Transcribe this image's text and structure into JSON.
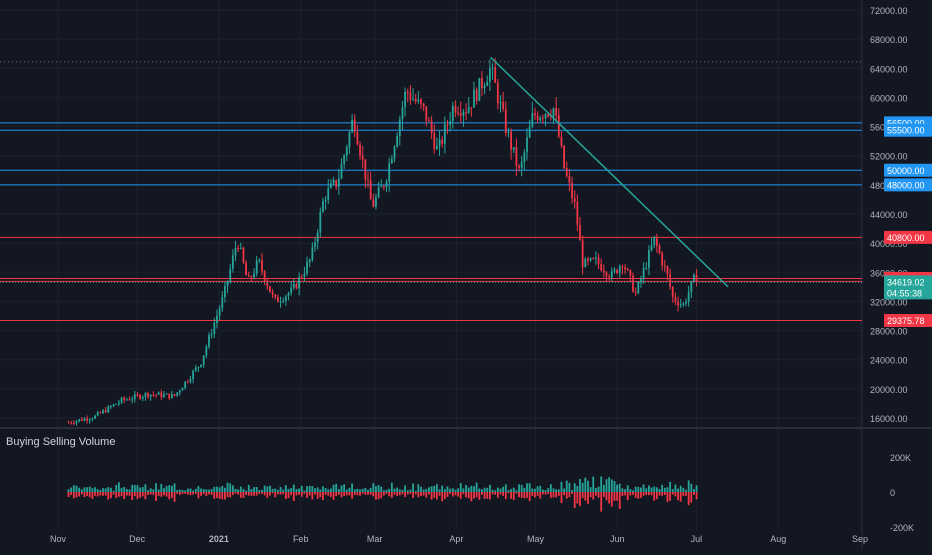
{
  "chart_data": {
    "type": "candlestick",
    "symbol_context": "Price",
    "x_axis_labels": [
      "Nov",
      "Dec",
      "2021",
      "Feb",
      "Mar",
      "Apr",
      "May",
      "Jun",
      "Jul",
      "Aug",
      "Sep"
    ],
    "y_axis_labels": [
      "72000.00",
      "68000.00",
      "64000.00",
      "60000.00",
      "56000.00",
      "52000.00",
      "48000.00",
      "44000.00",
      "40000.00",
      "36000.00",
      "32000.00",
      "28000.00",
      "24000.00",
      "20000.00",
      "16000.00"
    ],
    "price_path": [
      [
        "2020-11-05",
        15400
      ],
      [
        "2020-11-15",
        16200
      ],
      [
        "2020-11-25",
        18400
      ],
      [
        "2020-12-05",
        19300
      ],
      [
        "2020-12-15",
        19000
      ],
      [
        "2020-12-25",
        23500
      ],
      [
        "2021-01-03",
        33000
      ],
      [
        "2021-01-08",
        40500
      ],
      [
        "2021-01-12",
        34500
      ],
      [
        "2021-01-16",
        37500
      ],
      [
        "2021-01-22",
        32000
      ],
      [
        "2021-01-29",
        33500
      ],
      [
        "2021-02-05",
        38000
      ],
      [
        "2021-02-10",
        46500
      ],
      [
        "2021-02-15",
        48500
      ],
      [
        "2021-02-21",
        57300
      ],
      [
        "2021-02-28",
        45000
      ],
      [
        "2021-03-05",
        48500
      ],
      [
        "2021-03-13",
        61000
      ],
      [
        "2021-03-20",
        58000
      ],
      [
        "2021-03-25",
        52500
      ],
      [
        "2021-03-31",
        59000
      ],
      [
        "2021-04-05",
        58500
      ],
      [
        "2021-04-14",
        64000
      ],
      [
        "2021-04-20",
        55500
      ],
      [
        "2021-04-25",
        49500
      ],
      [
        "2021-04-30",
        57500
      ],
      [
        "2021-05-08",
        58500
      ],
      [
        "2021-05-12",
        50000
      ],
      [
        "2021-05-16",
        45000
      ],
      [
        "2021-05-19",
        37000
      ],
      [
        "2021-05-24",
        37500
      ],
      [
        "2021-05-30",
        35500
      ],
      [
        "2021-06-03",
        37500
      ],
      [
        "2021-06-08",
        33000
      ],
      [
        "2021-06-15",
        40500
      ],
      [
        "2021-06-20",
        35500
      ],
      [
        "2021-06-22",
        32500
      ],
      [
        "2021-06-26",
        31500
      ],
      [
        "2021-06-30",
        35000
      ],
      [
        "2021-07-02",
        34619
      ]
    ],
    "horizontal_levels": [
      {
        "price": 56500,
        "label": "56500.00",
        "color": "#2196f3"
      },
      {
        "price": 55500,
        "label": "55500.00",
        "color": "#2196f3"
      },
      {
        "price": 50000,
        "label": "50000.00",
        "color": "#2196f3"
      },
      {
        "price": 48000,
        "label": "48000.00",
        "color": "#2196f3"
      },
      {
        "price": 40800,
        "label": "40800.00",
        "color": "#f23645"
      },
      {
        "price": 35150,
        "label": "35150.00",
        "color": "#f23645"
      },
      {
        "price": 34750,
        "label": "34750.00",
        "color": "#f23645"
      },
      {
        "price": 29375.78,
        "label": "29375.78",
        "color": "#f23645"
      }
    ],
    "last_price": {
      "price": 34619.02,
      "label": "34619.02",
      "countdown": "04:55:38",
      "color": "#26a69a"
    },
    "ath_dotted_level": 64900,
    "trendline": {
      "from": [
        "2021-04-14",
        65500
      ],
      "to": [
        "2021-07-13",
        34000
      ],
      "color": "#26a69a"
    },
    "volume": {
      "title": "Buying Selling Volume",
      "y_axis_labels": [
        "200K",
        "0",
        "-200K"
      ],
      "colors": {
        "buy": "#26a69a",
        "sell": "#f23645"
      }
    },
    "colors": {
      "up": "#26a69a",
      "down": "#f23645",
      "background": "#131722",
      "grid": "#1e222d",
      "axis_text": "#b2b5be"
    }
  }
}
